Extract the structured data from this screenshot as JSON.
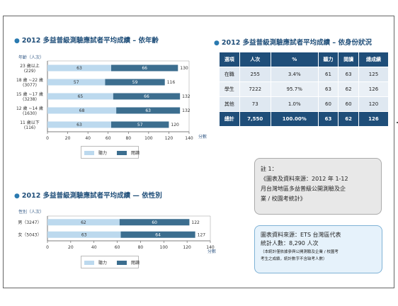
{
  "colors": {
    "listening": "#bcd9ee",
    "reading": "#3c6e8f",
    "title": "#1f4e79",
    "header": "#1f4e79"
  },
  "age_section": {
    "title": "2012 多益普級測驗應試者平均成績 – 依年齡",
    "axis_title": "年齡（人次）",
    "unit": "分數"
  },
  "status_section": {
    "title": "2012 多益普級測驗應試者平均成績 – 依身份狀況"
  },
  "gender_section": {
    "title": "2012 多益普級測驗應試者平均成績 — 依性別",
    "axis_title": "性別（人次）",
    "unit": "分數"
  },
  "legend": {
    "listening": "聽力",
    "reading": "閱讀"
  },
  "status_table": {
    "headers": [
      "選項",
      "人次",
      "%",
      "聽力",
      "閱讀",
      "總成績"
    ],
    "rows": [
      [
        "在職",
        "255",
        "3.4%",
        "61",
        "63",
        "125"
      ],
      [
        "學生",
        "7222",
        "95.7%",
        "63",
        "62",
        "126"
      ],
      [
        "其他",
        "73",
        "1.0%",
        "60",
        "60",
        "120"
      ]
    ],
    "total": [
      "總計",
      "7,550",
      "100.00%",
      "63",
      "62",
      "126"
    ]
  },
  "note": {
    "lines": [
      "註 1：",
      "《圖表及資料來源：2012 年 1-12",
      "月台灣地區多益普級公開測驗及企",
      "業 / 校園考統計》"
    ]
  },
  "source": {
    "line1": "圖表資料來源：ETS 台灣區代表",
    "line2": "統計人數：8,290 人次",
    "foot1": "（本統計僅依據參與公開測驗及企業 / 校園考",
    "foot2": "考生之成績，統計數字不含缺考人數）"
  },
  "chart_data": [
    {
      "type": "bar",
      "orientation": "horizontal",
      "stacked": true,
      "title": "2012 多益普級測驗應試者平均成績 – 依年齡",
      "ylabel": "年齡（人次）",
      "xlabel": "分數",
      "xlim": [
        0,
        140
      ],
      "xticks": [
        0,
        20,
        40,
        60,
        80,
        100,
        120,
        140
      ],
      "categories": [
        {
          "label": "23 歲以上",
          "count": "(229)"
        },
        {
          "label": "18 歲 ~22 歲",
          "count": "(3077)"
        },
        {
          "label": "15 歲 ~17 歲",
          "count": "(3238)"
        },
        {
          "label": "12 歲 ~14 歲",
          "count": "(1630)"
        },
        {
          "label": "11 歲以下",
          "count": "(116)"
        }
      ],
      "series": [
        {
          "name": "聽力",
          "values": [
            63,
            57,
            65,
            68,
            63
          ]
        },
        {
          "name": "閱讀",
          "values": [
            66,
            59,
            66,
            63,
            57
          ]
        }
      ],
      "totals": [
        130,
        116,
        132,
        132,
        120
      ],
      "legend": "bottom",
      "grid": false
    },
    {
      "type": "bar",
      "orientation": "horizontal",
      "stacked": true,
      "title": "2012 多益普級測驗應試者平均成績 — 依性別",
      "ylabel": "性別（人次）",
      "xlabel": "分數",
      "xlim": [
        0,
        140
      ],
      "xticks": [
        0,
        20,
        40,
        60,
        80,
        100,
        120,
        140
      ],
      "categories": [
        {
          "label": "男（3247）"
        },
        {
          "label": "女（5043）"
        }
      ],
      "series": [
        {
          "name": "聽力",
          "values": [
            62,
            63
          ]
        },
        {
          "name": "閱讀",
          "values": [
            60,
            64
          ]
        }
      ],
      "totals": [
        122,
        127
      ],
      "legend": "bottom",
      "grid": false
    }
  ]
}
